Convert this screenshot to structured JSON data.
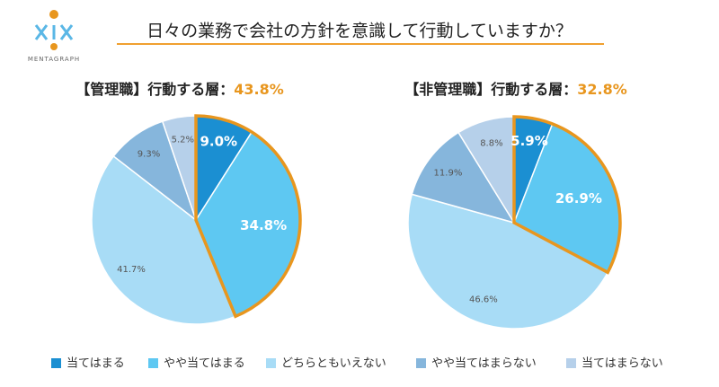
{
  "title": "日々の業務で会社の方針を意識して行動していますか？",
  "logo": "MENTAGRAPH",
  "chart_data": [
    {
      "type": "pie",
      "title": "【管理職】行動する層：",
      "highlight": "43.8%",
      "categories": [
        "当てはまる",
        "やや当てはまる",
        "どちらともいえない",
        "やや当てはまらない",
        "当てはまらない"
      ],
      "colors": [
        "#1b8fd2",
        "#5ec8f2",
        "#a8dcf6",
        "#86b6dc",
        "#b6d0ea"
      ],
      "values": [
        9.0,
        34.8,
        41.7,
        9.3,
        5.2
      ],
      "value_labels": [
        "9.0%",
        "34.8%",
        "41.7%",
        "9.3%",
        "5.2%"
      ],
      "highlight_color": "#e8961e"
    },
    {
      "type": "pie",
      "title": "【非管理職】行動する層：",
      "highlight": "32.8%",
      "categories": [
        "当てはまる",
        "やや当てはまる",
        "どちらともいえない",
        "やや当てはまらない",
        "当てはまらない"
      ],
      "colors": [
        "#1b8fd2",
        "#5ec8f2",
        "#a8dcf6",
        "#86b6dc",
        "#b6d0ea"
      ],
      "values": [
        5.9,
        26.9,
        46.6,
        11.9,
        8.8
      ],
      "value_labels": [
        "5.9%",
        "26.9%",
        "46.6%",
        "11.9%",
        "8.8%"
      ],
      "highlight_color": "#e8961e"
    }
  ]
}
